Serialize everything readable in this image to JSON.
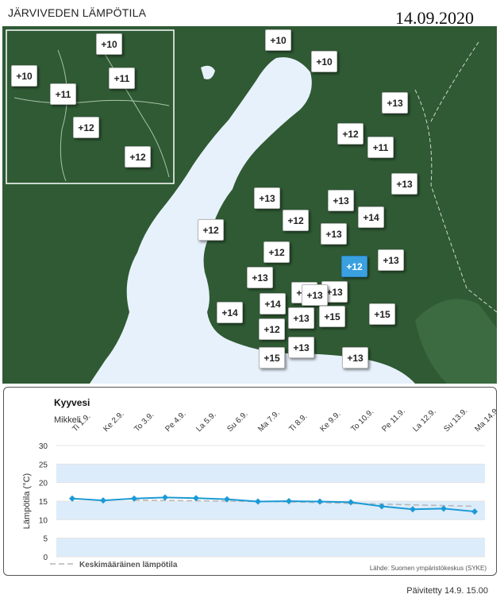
{
  "page": {
    "title": "JÄRVIVEDEN LÄMPÖTILA",
    "date": "14.09.2020",
    "updated": "Päivitetty 14.9. 15.00"
  },
  "colors": {
    "land": "#2f5a34",
    "water": "#e7f1fb",
    "selected_marker": "#3aa0e0",
    "series": "#1b9ad6",
    "band": "#dcecfa",
    "average": "#b5b5b5"
  },
  "map": {
    "inset_markers": [
      "+10",
      "+10",
      "+11",
      "+11",
      "+12",
      "+12"
    ],
    "main_markers": [
      "+10",
      "+10",
      "+13",
      "+12",
      "+11",
      "+13",
      "+13",
      "+13",
      "+14",
      "+12",
      "+12",
      "+13",
      "+12",
      "+12",
      "+13",
      "+13",
      "+13",
      "+13",
      "+13",
      "+14",
      "+14",
      "+13",
      "+15",
      "+15",
      "+12",
      "+13",
      "+15",
      "+13"
    ]
  },
  "chart_data": {
    "type": "line",
    "title": "Kyyvesi",
    "subtitle": "Mikkeli",
    "ylabel": "Lämpötila (°C)",
    "source": "Lähde: Suomen ympäristökeskus (SYKE)",
    "legend": "Keskimääräinen lämpötila",
    "legend_position": "bottom-left",
    "grid": true,
    "ylim": [
      0,
      30
    ],
    "yticks": [
      0,
      5,
      10,
      15,
      20,
      25,
      30
    ],
    "categories": [
      "Ti 1.9.",
      "Ke 2.9.",
      "To 3.9.",
      "Pe 4.9.",
      "La 5.9.",
      "Su 6.9.",
      "Ma 7.9.",
      "Ti 8.9.",
      "Ke 9.9.",
      "To 10.9.",
      "Pe 11.9.",
      "La 12.9.",
      "Su 13.9.",
      "Ma 14.9."
    ],
    "series": [
      {
        "values": [
          15.7,
          15.2,
          15.7,
          16.0,
          15.8,
          15.5,
          14.9,
          15.0,
          14.9,
          14.7,
          13.6,
          12.8,
          13.0,
          12.2
        ]
      },
      {
        "name": "Keskimääräinen lämpötila",
        "values": [
          null,
          null,
          15.3,
          15.2,
          15.1,
          15.0,
          14.9,
          14.8,
          14.6,
          14.4,
          14.2,
          14.0,
          13.8,
          13.6
        ]
      }
    ]
  }
}
